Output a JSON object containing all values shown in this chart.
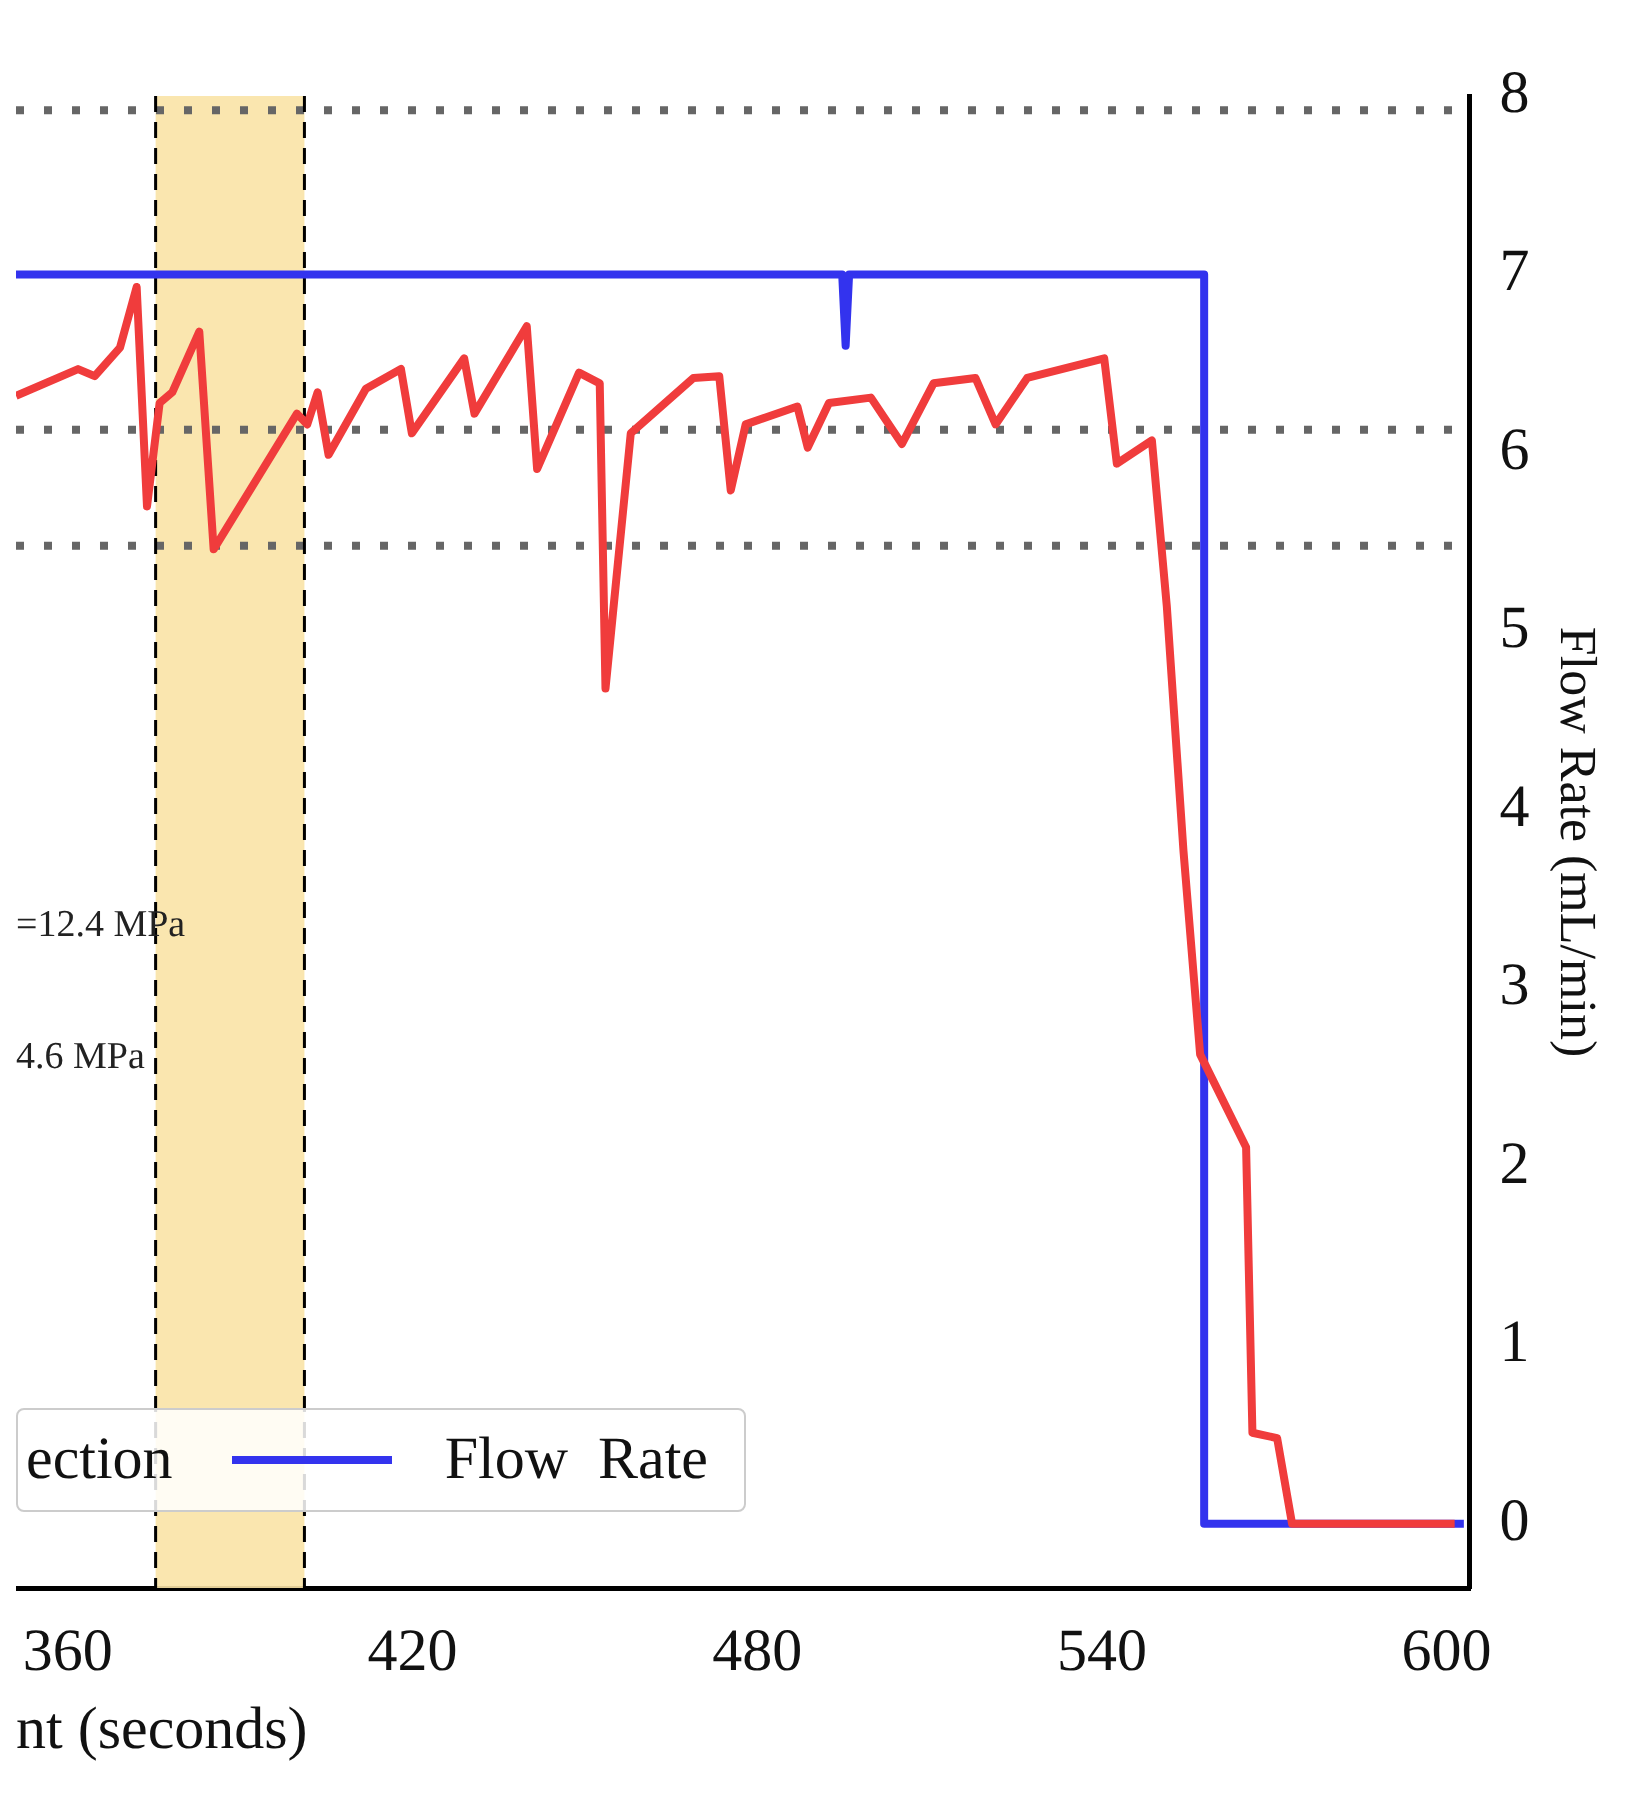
{
  "chart_data": {
    "type": "line",
    "xlabel": "nt (seconds)",
    "ylabel": "Flow Rate (mL/min)",
    "xlim": [
      351,
      604
    ],
    "xticks": [
      360,
      420,
      480,
      540,
      600
    ],
    "ylim": [
      -0.36,
      8
    ],
    "yticks": [
      0,
      1,
      2,
      3,
      4,
      5,
      6,
      7,
      8
    ],
    "grid": false,
    "legend": "bottom left",
    "line_style": "solid",
    "series": [
      {
        "color": "#f03c3c",
        "x": [
          351,
          361.8,
          364.7,
          369.1,
          372,
          373.8,
          376,
          378.2,
          382.9,
          385.4,
          399.9,
          401.7,
          403.5,
          405.4,
          411.9,
          418,
          419.9,
          429,
          430.8,
          439.9,
          441.7,
          449,
          452.6,
          453.6,
          458,
          468.9,
          473.4,
          475.4,
          478,
          487,
          488.8,
          492.5,
          499.8,
          505.2,
          510.7,
          518,
          521.5,
          527,
          540.4,
          542.6,
          548.7,
          551.3,
          554.2,
          557.1,
          565.1,
          566.2,
          570.5,
          573.1,
          601.4
        ],
        "values": [
          6.32,
          6.47,
          6.43,
          6.59,
          6.93,
          5.7,
          6.28,
          6.34,
          6.68,
          5.46,
          6.22,
          6.16,
          6.34,
          5.99,
          6.36,
          6.47,
          6.11,
          6.53,
          6.22,
          6.71,
          5.91,
          6.45,
          6.39,
          4.68,
          6.11,
          6.42,
          6.43,
          5.79,
          6.16,
          6.26,
          6.03,
          6.28,
          6.31,
          6.05,
          6.39,
          6.42,
          6.16,
          6.42,
          6.53,
          5.94,
          6.07,
          5.14,
          3.77,
          2.63,
          2.11,
          0.51,
          0.48,
          0,
          0
        ]
      },
      {
        "name": "Flow  Rate",
        "color": "#3333ee",
        "x": [
          351,
          494.8,
          495.4,
          496,
          557.8,
          557.8,
          603
        ],
        "values": [
          7,
          7,
          6.6,
          7,
          7,
          0,
          0
        ]
      }
    ],
    "ref_lines": [
      {
        "axis": "y",
        "value": 7.92,
        "color": "#666666",
        "line_style": "dotted"
      },
      {
        "axis": "y",
        "value": 6.13,
        "color": "#666666",
        "line_style": "dotted"
      },
      {
        "axis": "y",
        "value": 5.48,
        "color": "#666666",
        "line_style": "dotted"
      },
      {
        "axis": "x",
        "value": 375.3,
        "color": "#000000",
        "line_style": "dashed"
      },
      {
        "axis": "x",
        "value": 401.2,
        "color": "#000000",
        "line_style": "dashed"
      }
    ],
    "bands": [
      {
        "axis": "x",
        "from": 375.3,
        "to": 401.2,
        "label": "ection",
        "color": "#f9e3a6"
      }
    ],
    "annotations": [
      "=12.4 MPa",
      "4.6 MPa"
    ]
  }
}
